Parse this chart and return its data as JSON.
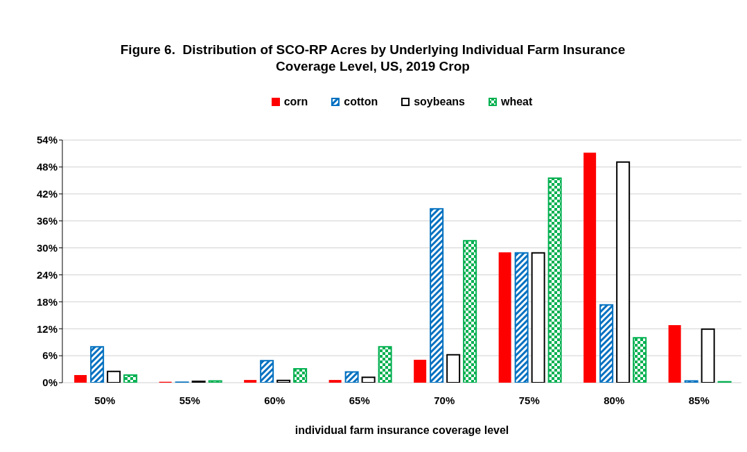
{
  "chart_data": {
    "type": "bar",
    "title": "Figure 6.  Distribution of SCO-RP Acres by Underlying Individual Farm Insurance Coverage Level, US, 2019 Crop",
    "xlabel": "individual farm insurance coverage level",
    "categories": [
      "50%",
      "55%",
      "60%",
      "65%",
      "70%",
      "75%",
      "80%",
      "85%"
    ],
    "series": [
      {
        "name": "corn",
        "color": "#ff0000",
        "values": [
          1.7,
          0.2,
          0.6,
          0.6,
          5.1,
          29.0,
          51.2,
          12.8
        ]
      },
      {
        "name": "cotton",
        "color": "#0070c0",
        "values": [
          8.0,
          0.1,
          4.9,
          2.4,
          38.7,
          28.9,
          17.3,
          0.4
        ]
      },
      {
        "name": "soybeans",
        "color": "#000000",
        "values": [
          2.5,
          0.3,
          0.5,
          1.2,
          6.2,
          28.9,
          49.1,
          11.9
        ]
      },
      {
        "name": "wheat",
        "color": "#00b050",
        "values": [
          1.7,
          0.4,
          3.1,
          8.0,
          31.6,
          45.5,
          10.0,
          0.2
        ]
      }
    ],
    "ylim": [
      0,
      54
    ],
    "yticks": [
      {
        "value": 0,
        "label": "0%"
      },
      {
        "value": 6,
        "label": "6%"
      },
      {
        "value": 12,
        "label": "12%"
      },
      {
        "value": 18,
        "label": "18%"
      },
      {
        "value": 24,
        "label": "24%"
      },
      {
        "value": 30,
        "label": "30%"
      },
      {
        "value": 36,
        "label": "36%"
      },
      {
        "value": 42,
        "label": "42%"
      },
      {
        "value": 48,
        "label": "48%"
      },
      {
        "value": 54,
        "label": "54%"
      }
    ],
    "grid": "y",
    "legend": "top"
  }
}
